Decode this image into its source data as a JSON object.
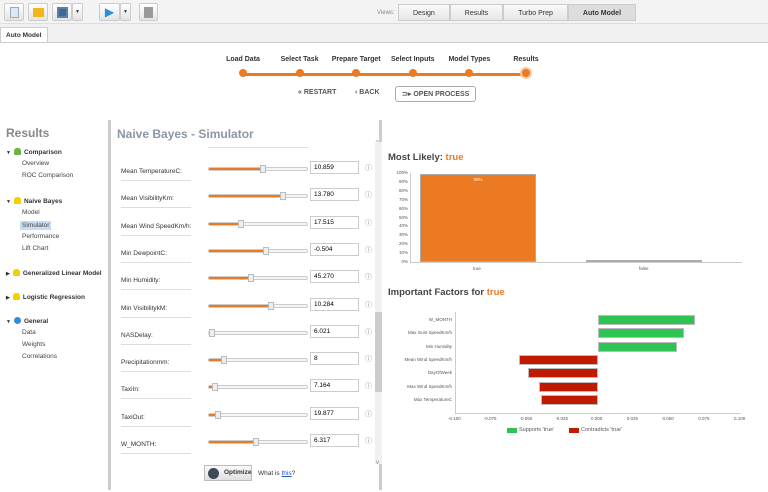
{
  "toolbar": {
    "icons": [
      "new-file-icon",
      "open-folder-icon",
      "save-icon",
      "dropdown-icon",
      "run-icon",
      "dropdown-icon",
      "stop-icon"
    ],
    "views_label": "Views:",
    "views": [
      "Design",
      "Results",
      "Turbo Prep",
      "Auto Model"
    ],
    "active_view": "Auto Model"
  },
  "tab": {
    "label": "Auto Model"
  },
  "wizard": {
    "steps": [
      "Load Data",
      "Select Task",
      "Prepare Target",
      "Select Inputs",
      "Model Types",
      "Results"
    ],
    "current": "Results",
    "restart": "RESTART",
    "back": "BACK",
    "open_process": "OPEN PROCESS",
    "accent": "#ec7a22"
  },
  "sidebar": {
    "title": "Results",
    "groups": [
      {
        "label": "Comparison",
        "icon": "chart-icon",
        "expanded": true,
        "items": [
          "Overview",
          "ROC Comparison"
        ]
      },
      {
        "label": "Naive Bayes",
        "icon": "lightbulb-icon",
        "expanded": true,
        "items": [
          "Model",
          "Simulator",
          "Performance",
          "Lift Chart"
        ]
      },
      {
        "label": "Generalized Linear Model",
        "icon": "lightbulb-icon",
        "expanded": false,
        "items": []
      },
      {
        "label": "Logistic Regression",
        "icon": "lightbulb-icon",
        "expanded": false,
        "items": []
      },
      {
        "label": "General",
        "icon": "info-icon",
        "expanded": true,
        "items": [
          "Data",
          "Weights",
          "Correlations"
        ]
      }
    ],
    "selected": "Simulator"
  },
  "simulator": {
    "title": "Naive Bayes - Simulator",
    "inputs": [
      {
        "label": "Mean TemperatureC:",
        "value": "10.859",
        "level": 0.55
      },
      {
        "label": "Mean VisibilityKm:",
        "value": "13.780",
        "level": 0.76
      },
      {
        "label": "Mean Wind SpeedKm/h:",
        "value": "17.515",
        "level": 0.33
      },
      {
        "label": "Min DewpointC:",
        "value": "-0.504",
        "level": 0.58
      },
      {
        "label": "Min Humidity:",
        "value": "45.270",
        "level": 0.43
      },
      {
        "label": "Min VisibilitykM:",
        "value": "10.284",
        "level": 0.63
      },
      {
        "label": "NASDelay:",
        "value": "6.021",
        "level": 0.03
      },
      {
        "label": "Precipitationmm:",
        "value": "8",
        "level": 0.15
      },
      {
        "label": "TaxiIn:",
        "value": "7.164",
        "level": 0.06
      },
      {
        "label": "TaxiOut:",
        "value": "19.877",
        "level": 0.09
      },
      {
        "label": "W_MONTH:",
        "value": "6.317",
        "level": 0.48
      }
    ],
    "optimize": "Optimize",
    "what_is": "What is ",
    "this_link": "this",
    "q": "?"
  },
  "chart_data": [
    {
      "type": "bar",
      "title_prefix": "Most Likely: ",
      "title_value": "true",
      "categories": [
        "true",
        "false"
      ],
      "values": [
        99,
        1
      ],
      "data_labels": [
        "99%",
        ""
      ],
      "colors": [
        "#ec7a22",
        "#3aa89a"
      ],
      "ylim": [
        0,
        100
      ],
      "yticks": [
        "0%",
        "10%",
        "20%",
        "30%",
        "40%",
        "50%",
        "60%",
        "70%",
        "80%",
        "90%",
        "100%"
      ]
    },
    {
      "type": "bar",
      "orientation": "horizontal",
      "title_prefix": "Important Factors for ",
      "title_value": "true",
      "categories": [
        "W_MONTH",
        "Max Gust SpeedKm/h",
        "Min Humidity",
        "Mean Wind SpeedKm/h",
        "DayOfWeek",
        "Max Wind SpeedKm/h",
        "Max TemperatureC"
      ],
      "values": [
        0.068,
        0.06,
        0.055,
        -0.055,
        -0.049,
        -0.041,
        -0.04
      ],
      "xlim": [
        -0.1,
        0.1
      ],
      "xticks": [
        "-0.100",
        "-0.075",
        "-0.050",
        "-0.025",
        "0.000",
        "0.025",
        "0.050",
        "0.075",
        "0.100"
      ],
      "legend": [
        {
          "name": "Supports 'true'",
          "color": "#2ec454"
        },
        {
          "name": "Contradicts 'true'",
          "color": "#c01a00"
        }
      ],
      "legend_placement": "bottom"
    }
  ]
}
